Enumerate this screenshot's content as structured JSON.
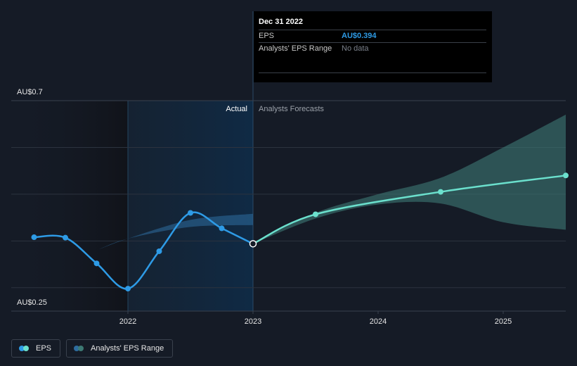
{
  "colors": {
    "eps_actual": "#2e9be6",
    "eps_forecast": "#6be0cd",
    "range_actual": "#2e6da0",
    "range_forecast": "#3d7a74",
    "grid": "#2c333f",
    "background": "#151b26"
  },
  "tooltip": {
    "date": "Dec 31 2022",
    "eps_label": "EPS",
    "eps_value": "AU$0.394",
    "range_label": "Analysts' EPS Range",
    "range_value": "No data"
  },
  "legend": {
    "eps_label": "EPS",
    "range_label": "Analysts' EPS Range"
  },
  "chart_data": {
    "type": "line",
    "title": "",
    "xlabel": "",
    "ylabel": "",
    "ylim": [
      0.25,
      0.7
    ],
    "y_tick_labels": [
      {
        "value": 0.7,
        "label": "AU$0.7"
      },
      {
        "value": 0.25,
        "label": "AU$0.25"
      }
    ],
    "x_tick_labels": [
      {
        "value": 2022.0,
        "label": "2022"
      },
      {
        "value": 2023.0,
        "label": "2023"
      },
      {
        "value": 2024.0,
        "label": "2024"
      },
      {
        "value": 2025.0,
        "label": "2025"
      }
    ],
    "y_gridlines": [
      0.7,
      0.6,
      0.5,
      0.4,
      0.3,
      0.25
    ],
    "xlim": [
      2021.08,
      2025.5
    ],
    "divider_x": 2023.0,
    "highlight_x_start": 2022.0,
    "section_labels": {
      "actual": "Actual",
      "forecast": "Analysts Forecasts"
    },
    "series": [
      {
        "name": "EPS",
        "role": "actual",
        "points": [
          [
            2021.25,
            0.408
          ],
          [
            2021.5,
            0.407
          ],
          [
            2021.75,
            0.352
          ],
          [
            2022.0,
            0.298
          ],
          [
            2022.25,
            0.378
          ],
          [
            2022.5,
            0.46
          ],
          [
            2022.75,
            0.427
          ],
          [
            2023.0,
            0.394
          ]
        ]
      },
      {
        "name": "EPS",
        "role": "forecast",
        "points": [
          [
            2023.0,
            0.394
          ],
          [
            2023.5,
            0.457
          ],
          [
            2024.5,
            0.505
          ],
          [
            2025.5,
            0.54
          ]
        ]
      },
      {
        "name": "Analysts' EPS Range",
        "role": "range-actual",
        "upper": [
          [
            2021.75,
            0.38
          ],
          [
            2022.0,
            0.405
          ],
          [
            2022.5,
            0.445
          ],
          [
            2023.0,
            0.458
          ]
        ],
        "lower": [
          [
            2021.75,
            0.38
          ],
          [
            2022.0,
            0.405
          ],
          [
            2022.5,
            0.43
          ],
          [
            2023.0,
            0.434
          ]
        ]
      },
      {
        "name": "Analysts' EPS Range",
        "role": "range-forecast",
        "upper": [
          [
            2023.0,
            0.394
          ],
          [
            2023.5,
            0.46
          ],
          [
            2024.0,
            0.5
          ],
          [
            2024.5,
            0.535
          ],
          [
            2025.0,
            0.6
          ],
          [
            2025.5,
            0.67
          ]
        ],
        "lower": [
          [
            2023.0,
            0.394
          ],
          [
            2023.5,
            0.448
          ],
          [
            2024.0,
            0.478
          ],
          [
            2024.5,
            0.48
          ],
          [
            2025.0,
            0.44
          ],
          [
            2025.5,
            0.424
          ]
        ]
      }
    ]
  }
}
